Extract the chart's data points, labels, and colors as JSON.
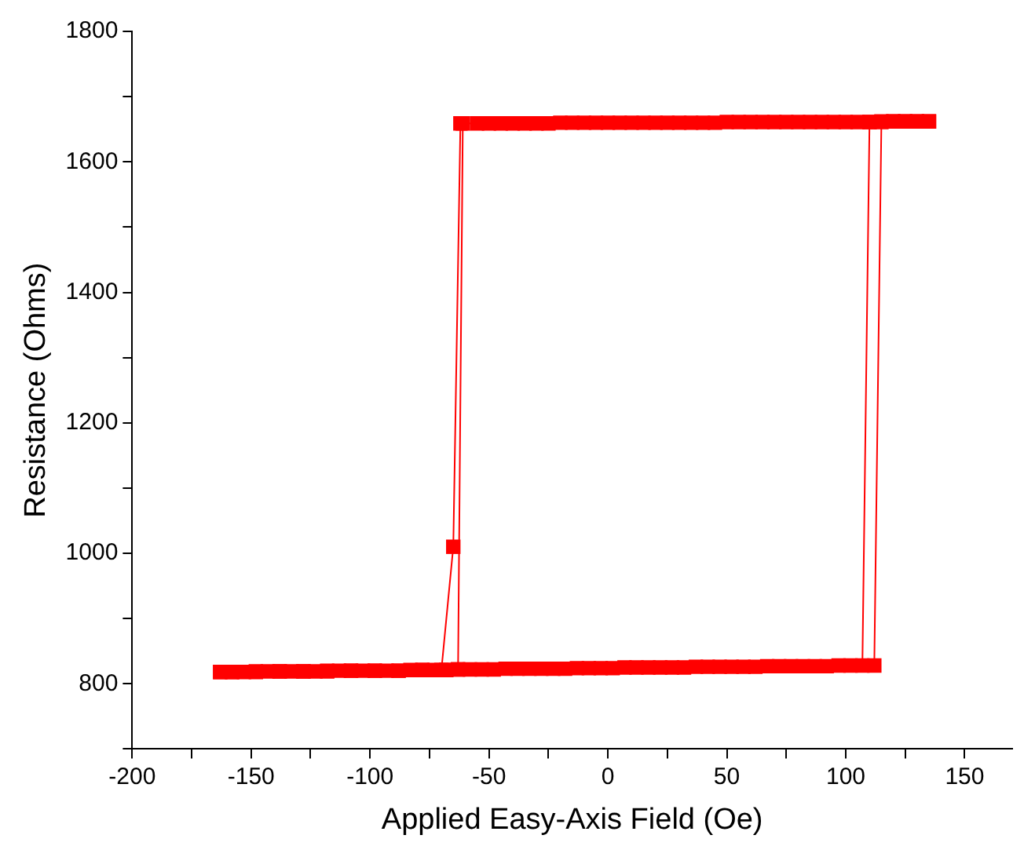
{
  "chart_data": {
    "type": "line",
    "xlabel": "Applied Easy-Axis Field (Oe)",
    "ylabel": "Resistance (Ohms)",
    "xlim": [
      -200,
      170
    ],
    "xticks": [
      -200,
      {
        "value": -175,
        "label": null
      },
      -150,
      {
        "value": -125,
        "label": null
      },
      -100,
      {
        "value": -75,
        "label": null
      },
      -50,
      {
        "value": -25,
        "label": null
      },
      0,
      {
        "value": 25,
        "label": null
      },
      50,
      {
        "value": 75,
        "label": null
      },
      100,
      {
        "value": 125,
        "label": null
      },
      150
    ],
    "ylim": [
      700,
      1800
    ],
    "yticks": [
      {
        "value": 700,
        "label": null
      },
      800,
      {
        "value": 900,
        "label": null
      },
      1000,
      {
        "value": 1100,
        "label": null
      },
      1200,
      {
        "value": 1300,
        "label": null
      },
      1400,
      {
        "value": 1500,
        "label": null
      },
      1600,
      {
        "value": 1700,
        "label": null
      },
      1800
    ],
    "grid": false,
    "legend": false,
    "marker": "square",
    "line_style": "solid",
    "series": [
      {
        "color": "#ff0000",
        "x": [
          -163,
          -153,
          -143,
          -133,
          -123,
          -113,
          -103,
          -93,
          -83,
          -73,
          -63,
          -53,
          -43,
          -33,
          -23,
          -13,
          -3,
          7,
          17,
          27,
          37,
          47,
          57,
          67,
          77,
          87,
          97,
          107,
          110,
          120,
          130,
          135,
          125,
          115,
          105,
          95,
          85,
          75,
          65,
          55,
          45,
          35,
          25,
          15,
          5,
          -5,
          -15,
          -25,
          -35,
          -45,
          -55,
          -62,
          -65,
          -70,
          -78,
          -88,
          -98,
          -108,
          -118,
          -128,
          -138,
          -148,
          -158,
          -163,
          -158,
          -148,
          -138,
          -128,
          -118,
          -108,
          -98,
          -88,
          -78,
          -68,
          -58,
          -48,
          -38,
          -28,
          -18,
          -8,
          2,
          12,
          22,
          32,
          42,
          52,
          62,
          72,
          82,
          92,
          102,
          112,
          115,
          125,
          135,
          130,
          120,
          110,
          100,
          90,
          80,
          70,
          60,
          50,
          40,
          30,
          20,
          10,
          0,
          -10,
          -20,
          -30,
          -40,
          -50,
          -61,
          -63,
          -68
        ],
        "values": [
          818,
          818,
          819,
          819,
          819,
          820,
          820,
          820,
          821,
          821,
          822,
          822,
          823,
          823,
          823,
          824,
          824,
          825,
          825,
          825,
          826,
          826,
          826,
          827,
          827,
          827,
          828,
          828,
          1661,
          1662,
          1662,
          1662,
          1662,
          1661,
          1661,
          1661,
          1661,
          1661,
          1661,
          1661,
          1660,
          1660,
          1660,
          1660,
          1660,
          1660,
          1660,
          1659,
          1659,
          1659,
          1659,
          1659,
          1010,
          821,
          821,
          820,
          820,
          820,
          819,
          819,
          819,
          818,
          818,
          818,
          818,
          819,
          819,
          819,
          820,
          820,
          820,
          820,
          821,
          821,
          822,
          822,
          823,
          823,
          823,
          824,
          824,
          825,
          825,
          825,
          826,
          826,
          826,
          827,
          827,
          827,
          828,
          828,
          1662,
          1662,
          1662,
          1662,
          1662,
          1661,
          1661,
          1661,
          1661,
          1661,
          1661,
          1661,
          1660,
          1660,
          1660,
          1660,
          1660,
          1660,
          1660,
          1659,
          1659,
          1659,
          1659,
          822,
          821
        ]
      }
    ]
  }
}
